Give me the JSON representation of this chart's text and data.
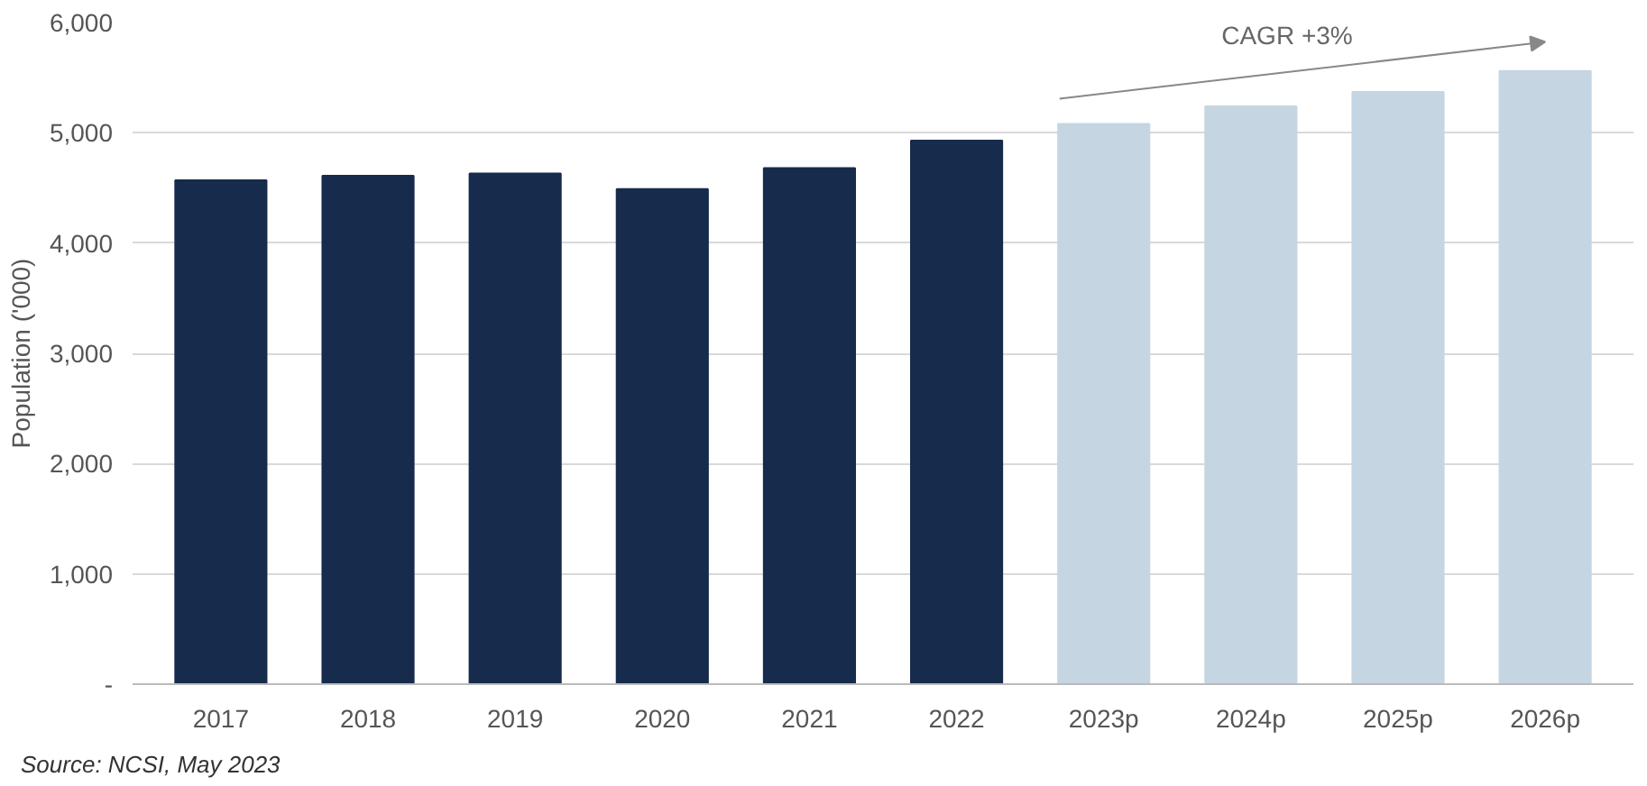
{
  "chart_data": {
    "type": "bar",
    "ylabel": "Population ('000)",
    "categories": [
      "2017",
      "2018",
      "2019",
      "2020",
      "2021",
      "2022",
      "2023p",
      "2024p",
      "2025p",
      "2026p"
    ],
    "values": [
      4570,
      4610,
      4630,
      4490,
      4680,
      4930,
      5080,
      5240,
      5370,
      5560
    ],
    "colors": [
      "#172b4d",
      "#172b4d",
      "#172b4d",
      "#172b4d",
      "#172b4d",
      "#172b4d",
      "#c5d5e2",
      "#c5d5e2",
      "#c5d5e2",
      "#c5d5e2"
    ],
    "ylim": [
      0,
      6000
    ],
    "yticks": [
      {
        "value": 0,
        "label": "-"
      },
      {
        "value": 1000,
        "label": "1,000"
      },
      {
        "value": 2000,
        "label": "2,000"
      },
      {
        "value": 3000,
        "label": "3,000"
      },
      {
        "value": 4000,
        "label": "4,000"
      },
      {
        "value": 5000,
        "label": "5,000"
      },
      {
        "value": 6000,
        "label": "6,000"
      }
    ],
    "grid": "y",
    "annotations": [
      "CAGR +3%",
      "Source: NCSI, May 2023"
    ]
  }
}
